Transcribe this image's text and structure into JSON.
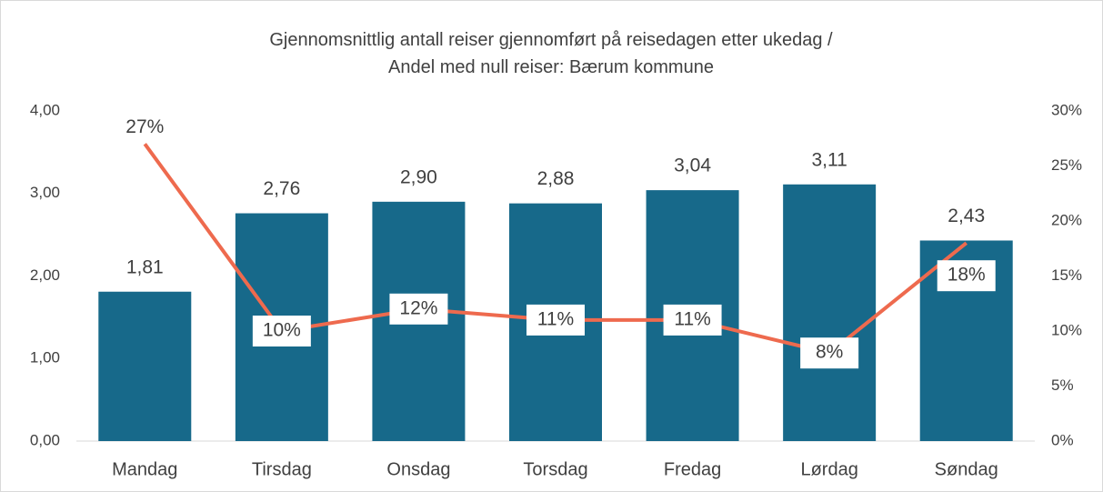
{
  "chart_data": {
    "type": "bar-line",
    "title": "Gjennomsnittlig antall reiser gjennomført på reisedagen etter ukedag / Andel med null reiser: Bærum kommune",
    "categories": [
      "Mandag",
      "Tirsdag",
      "Onsdag",
      "Torsdag",
      "Fredag",
      "Lørdag",
      "Søndag"
    ],
    "series": [
      {
        "type": "bar",
        "color": "#17698a",
        "values": [
          1.81,
          2.76,
          2.9,
          2.88,
          3.04,
          3.11,
          2.43
        ],
        "value_labels": [
          "1,81",
          "2,76",
          "2,90",
          "2,88",
          "3,04",
          "3,11",
          "2,43"
        ]
      },
      {
        "type": "line",
        "axis": "y2",
        "color": "#ee6a4e",
        "values": [
          27,
          10,
          12,
          11,
          11,
          8,
          18
        ],
        "value_labels": [
          "27%",
          "10%",
          "12%",
          "11%",
          "11%",
          "8%",
          "18%"
        ]
      }
    ],
    "ylim": [
      0,
      4
    ],
    "yticks": [
      {
        "value": 0,
        "label": "0,00"
      },
      {
        "value": 1,
        "label": "1,00"
      },
      {
        "value": 2,
        "label": "2,00"
      },
      {
        "value": 3,
        "label": "3,00"
      },
      {
        "value": 4,
        "label": "4,00"
      }
    ],
    "y2lim": [
      0,
      30
    ],
    "y2ticks": [
      {
        "value": 0,
        "label": "0%"
      },
      {
        "value": 5,
        "label": "5%"
      },
      {
        "value": 10,
        "label": "10%"
      },
      {
        "value": 15,
        "label": "15%"
      },
      {
        "value": 20,
        "label": "20%"
      },
      {
        "value": 25,
        "label": "25%"
      },
      {
        "value": 30,
        "label": "30%"
      }
    ]
  }
}
